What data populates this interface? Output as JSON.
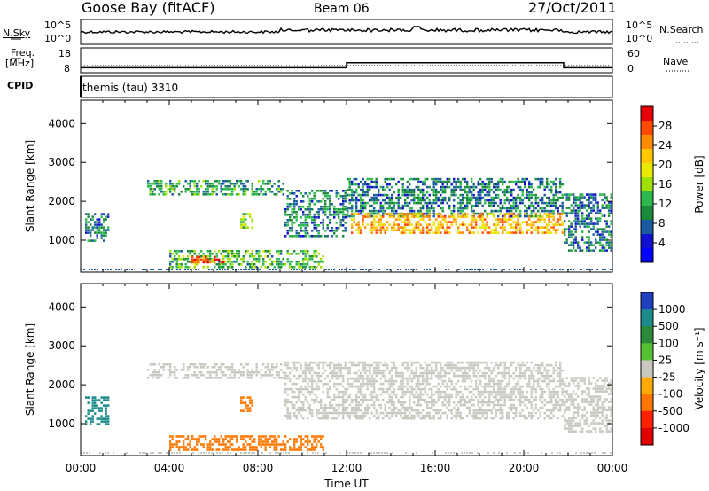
{
  "header": {
    "station": "Goose Bay (fitACF)",
    "beam": "Beam 06",
    "date": "27/Oct/2011"
  },
  "noise_panel": {
    "left_label": "N.Sky",
    "right_label": "N.Search",
    "left_ticks": [
      "10^5",
      "10^0"
    ],
    "right_ticks": [
      "10^5",
      "10^0"
    ]
  },
  "freq_panel": {
    "left_label_1": "Freq.",
    "left_label_2": "[MHz]",
    "right_label": "Nave",
    "left_ticks": [
      "18",
      "8"
    ],
    "right_ticks": [
      "60",
      "0"
    ]
  },
  "cpid_panel": {
    "label": "CPID",
    "program": "themis (tau) 3310"
  },
  "power_colorbar": {
    "label": "Power [dB]",
    "ticks": [
      "28",
      "24",
      "20",
      "16",
      "12",
      "8",
      "4"
    ],
    "colors": [
      "#e6000a",
      "#ff4a00",
      "#ff8c00",
      "#ffc800",
      "#e8e800",
      "#9ee000",
      "#2cb84c",
      "#1a8a3a",
      "#1a5aa0",
      "#1010d0",
      "#0000ff"
    ]
  },
  "velocity_colorbar": {
    "label": "Velocity [m s⁻¹]",
    "ticks": [
      "1000",
      "500",
      "100",
      "25",
      "-25",
      "-100",
      "-500",
      "-1000"
    ],
    "colors": [
      "#2040c0",
      "#1a8a8a",
      "#2a8a3a",
      "#55c030",
      "#c8c8c0",
      "#ffaa00",
      "#ff7700",
      "#ff2000",
      "#e00000"
    ]
  },
  "chart_data": [
    {
      "type": "heatmap",
      "name": "power",
      "xlabel": "",
      "ylabel": "Slant Range [km]",
      "xlim_hours": [
        0,
        24
      ],
      "ylim_km": [
        180,
        4600
      ],
      "yticks": [
        "1000",
        "2000",
        "3000",
        "4000"
      ],
      "regions": [
        {
          "t0": 3.0,
          "t1": 9.2,
          "r0": 2150,
          "r1": 2550,
          "power": 10
        },
        {
          "t0": 0.2,
          "t1": 1.3,
          "r0": 1000,
          "r1": 1700,
          "power": 8
        },
        {
          "t0": 4.0,
          "t1": 11.0,
          "r0": 300,
          "r1": 750,
          "power": 12
        },
        {
          "t0": 5.0,
          "t1": 6.5,
          "r0": 400,
          "r1": 600,
          "power": 26
        },
        {
          "t0": 7.2,
          "t1": 7.8,
          "r0": 1300,
          "r1": 1700,
          "power": 14
        },
        {
          "t0": 9.2,
          "t1": 12.0,
          "r0": 1100,
          "r1": 2300,
          "power": 8
        },
        {
          "t0": 12.0,
          "t1": 21.8,
          "r0": 1600,
          "r1": 2600,
          "power": 8
        },
        {
          "t0": 12.2,
          "t1": 21.8,
          "r0": 1200,
          "r1": 1700,
          "power": 22
        },
        {
          "t0": 21.8,
          "t1": 24.0,
          "r0": 700,
          "r1": 2200,
          "power": 8
        }
      ]
    },
    {
      "type": "heatmap",
      "name": "velocity",
      "xlabel": "Time UT",
      "ylabel": "Slant Range [km]",
      "xlim_hours": [
        0,
        24
      ],
      "ylim_km": [
        180,
        4600
      ],
      "yticks": [
        "1000",
        "2000",
        "3000",
        "4000"
      ],
      "xticks": [
        "00:00",
        "04:00",
        "08:00",
        "12:00",
        "16:00",
        "20:00",
        "00:00"
      ],
      "regions": [
        {
          "t0": 3.0,
          "t1": 9.2,
          "r0": 2150,
          "r1": 2550,
          "velocity": 0
        },
        {
          "t0": 0.2,
          "t1": 1.3,
          "r0": 1000,
          "r1": 1700,
          "velocity": 300
        },
        {
          "t0": 4.0,
          "t1": 11.0,
          "r0": 300,
          "r1": 700,
          "velocity": -200
        },
        {
          "t0": 7.2,
          "t1": 7.8,
          "r0": 1300,
          "r1": 1700,
          "velocity": -300
        },
        {
          "t0": 9.2,
          "t1": 21.8,
          "r0": 1100,
          "r1": 2600,
          "velocity": 0
        },
        {
          "t0": 21.8,
          "t1": 24.0,
          "r0": 800,
          "r1": 2200,
          "velocity": 0
        }
      ]
    }
  ],
  "frequency_steps": [
    {
      "t0": 0.0,
      "t1": 12.0,
      "freq_mhz": 10.0
    },
    {
      "t0": 12.0,
      "t1": 21.8,
      "freq_mhz": 12.0
    },
    {
      "t0": 21.8,
      "t1": 24.0,
      "freq_mhz": 10.0
    }
  ]
}
